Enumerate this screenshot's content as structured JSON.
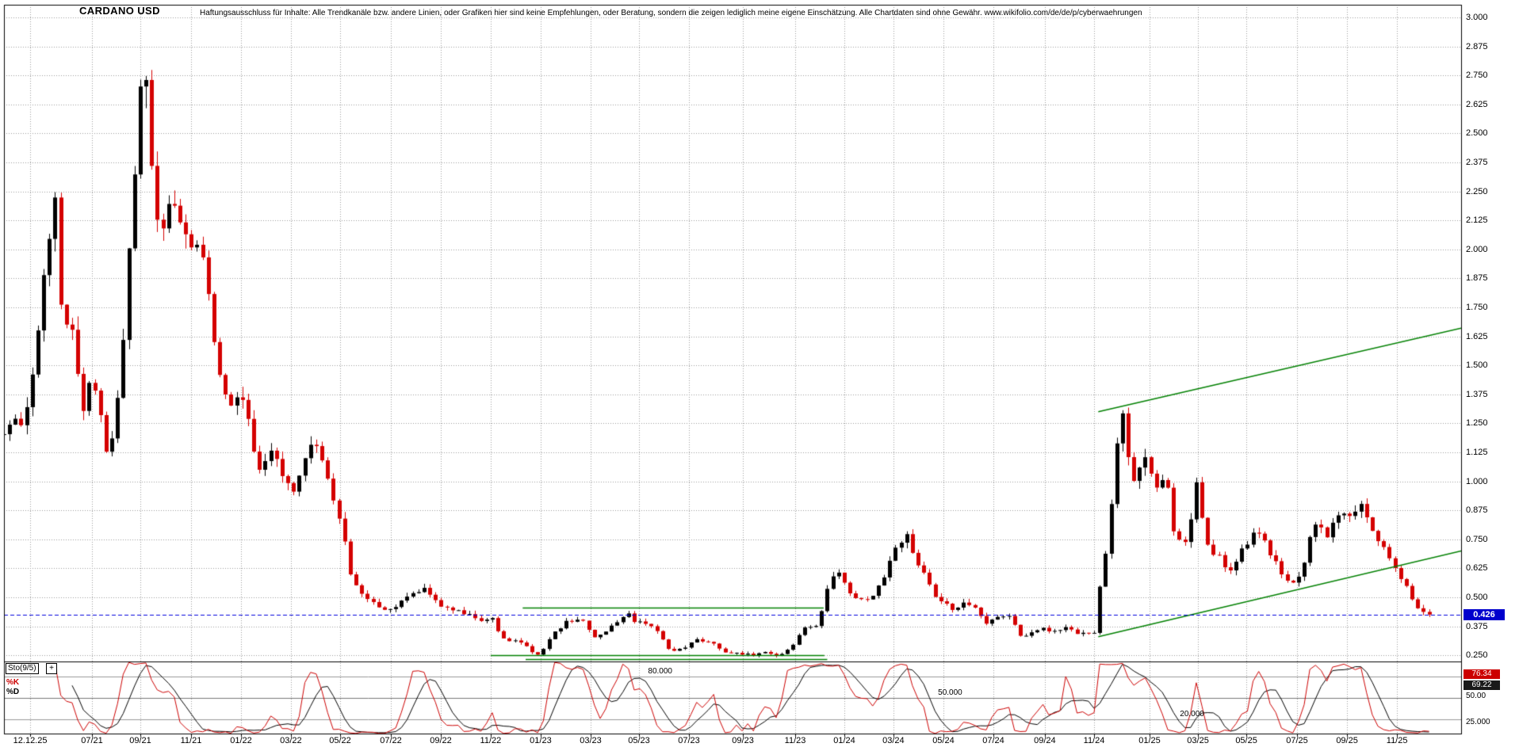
{
  "header": {
    "title": "CARDANO USD",
    "disclaimer": "Haftungsausschluss für Inhalte: Alle Trendkanäle bzw. andere Linien, oder Grafiken hier sind keine Empfehlungen, oder Beratung, sondern die zeigen lediglich meine eigene Einschätzung. Alle Chartdaten sind ohne Gewähr. www.wikifolio.com/de/de/p/cyberwaehrungen"
  },
  "colors": {
    "up_candle": "#000000",
    "down_candle": "#d40000",
    "trend_line": "#008000",
    "price_line": "#0000dd",
    "grid": "#999999",
    "k_line": "#cc0000",
    "d_line": "#000000",
    "badge_bg": "#0000cd"
  },
  "chart_data": {
    "type": "candlestick",
    "title": "CARDANO USD",
    "unit": "USD",
    "last_price": "0.426",
    "price_line": 0.426,
    "ylim": [
      0.22,
      3.05
    ],
    "y_ticks": [
      "3.000",
      "2.875",
      "2.750",
      "2.625",
      "2.500",
      "2.375",
      "2.250",
      "2.125",
      "2.000",
      "1.875",
      "1.750",
      "1.625",
      "1.500",
      "1.375",
      "1.250",
      "1.125",
      "1.000",
      "0.875",
      "0.750",
      "0.625",
      "0.500",
      "0.375",
      "0.250"
    ],
    "x_ticks": [
      {
        "label": "12.12.25",
        "u": 0.018
      },
      {
        "label": "07/21",
        "u": 0.0604
      },
      {
        "label": "09/21",
        "u": 0.0936
      },
      {
        "label": "11/21",
        "u": 0.1284
      },
      {
        "label": "01/22",
        "u": 0.1627
      },
      {
        "label": "03/22",
        "u": 0.1969
      },
      {
        "label": "05/22",
        "u": 0.2307
      },
      {
        "label": "07/22",
        "u": 0.2655
      },
      {
        "label": "09/22",
        "u": 0.2998
      },
      {
        "label": "11/22",
        "u": 0.334
      },
      {
        "label": "01/23",
        "u": 0.3683
      },
      {
        "label": "03/23",
        "u": 0.4026
      },
      {
        "label": "05/23",
        "u": 0.4358
      },
      {
        "label": "07/23",
        "u": 0.4701
      },
      {
        "label": "09/23",
        "u": 0.5071
      },
      {
        "label": "11/23",
        "u": 0.543
      },
      {
        "label": "01/24",
        "u": 0.5767
      },
      {
        "label": "03/24",
        "u": 0.6104
      },
      {
        "label": "05/24",
        "u": 0.6447
      },
      {
        "label": "07/24",
        "u": 0.679
      },
      {
        "label": "09/24",
        "u": 0.7143
      },
      {
        "label": "11/24",
        "u": 0.7481
      },
      {
        "label": "01/25",
        "u": 0.7862
      },
      {
        "label": "03/25",
        "u": 0.8194
      },
      {
        "label": "05/25",
        "u": 0.8526
      },
      {
        "label": "07/25",
        "u": 0.8874
      },
      {
        "label": "09/25",
        "u": 0.9217
      },
      {
        "label": "11/25",
        "u": 0.956
      }
    ],
    "anchors": [
      [
        0.0,
        1.2
      ],
      [
        0.008,
        1.3
      ],
      [
        0.014,
        1.25
      ],
      [
        0.019,
        1.42
      ],
      [
        0.027,
        1.85
      ],
      [
        0.035,
        2.28
      ],
      [
        0.04,
        1.58
      ],
      [
        0.046,
        1.72
      ],
      [
        0.054,
        1.3
      ],
      [
        0.061,
        1.45
      ],
      [
        0.071,
        1.1
      ],
      [
        0.08,
        1.4
      ],
      [
        0.088,
        2.2
      ],
      [
        0.095,
        2.92
      ],
      [
        0.101,
        2.4
      ],
      [
        0.107,
        2.08
      ],
      [
        0.114,
        2.22
      ],
      [
        0.121,
        2.08
      ],
      [
        0.128,
        1.98
      ],
      [
        0.134,
        2.08
      ],
      [
        0.145,
        1.6
      ],
      [
        0.153,
        1.32
      ],
      [
        0.163,
        1.38
      ],
      [
        0.17,
        1.18
      ],
      [
        0.175,
        1.06
      ],
      [
        0.185,
        1.15
      ],
      [
        0.191,
        1.02
      ],
      [
        0.197,
        0.96
      ],
      [
        0.205,
        1.05
      ],
      [
        0.212,
        1.18
      ],
      [
        0.224,
        0.96
      ],
      [
        0.232,
        0.8
      ],
      [
        0.238,
        0.6
      ],
      [
        0.245,
        0.52
      ],
      [
        0.254,
        0.47
      ],
      [
        0.265,
        0.44
      ],
      [
        0.276,
        0.5
      ],
      [
        0.288,
        0.55
      ],
      [
        0.3,
        0.46
      ],
      [
        0.31,
        0.45
      ],
      [
        0.318,
        0.42
      ],
      [
        0.325,
        0.41
      ],
      [
        0.336,
        0.4
      ],
      [
        0.341,
        0.33
      ],
      [
        0.351,
        0.31
      ],
      [
        0.36,
        0.28
      ],
      [
        0.367,
        0.25
      ],
      [
        0.376,
        0.34
      ],
      [
        0.385,
        0.39
      ],
      [
        0.396,
        0.4
      ],
      [
        0.403,
        0.35
      ],
      [
        0.407,
        0.32
      ],
      [
        0.414,
        0.36
      ],
      [
        0.42,
        0.39
      ],
      [
        0.427,
        0.43
      ],
      [
        0.435,
        0.39
      ],
      [
        0.445,
        0.37
      ],
      [
        0.451,
        0.33
      ],
      [
        0.457,
        0.27
      ],
      [
        0.468,
        0.29
      ],
      [
        0.476,
        0.32
      ],
      [
        0.486,
        0.3
      ],
      [
        0.492,
        0.27
      ],
      [
        0.499,
        0.26
      ],
      [
        0.512,
        0.25
      ],
      [
        0.523,
        0.26
      ],
      [
        0.533,
        0.25
      ],
      [
        0.541,
        0.29
      ],
      [
        0.548,
        0.36
      ],
      [
        0.559,
        0.39
      ],
      [
        0.567,
        0.58
      ],
      [
        0.574,
        0.62
      ],
      [
        0.58,
        0.52
      ],
      [
        0.586,
        0.48
      ],
      [
        0.598,
        0.52
      ],
      [
        0.605,
        0.6
      ],
      [
        0.61,
        0.68
      ],
      [
        0.618,
        0.78
      ],
      [
        0.628,
        0.64
      ],
      [
        0.638,
        0.52
      ],
      [
        0.645,
        0.47
      ],
      [
        0.652,
        0.45
      ],
      [
        0.658,
        0.49
      ],
      [
        0.664,
        0.46
      ],
      [
        0.675,
        0.39
      ],
      [
        0.683,
        0.41
      ],
      [
        0.69,
        0.42
      ],
      [
        0.698,
        0.33
      ],
      [
        0.705,
        0.35
      ],
      [
        0.71,
        0.37
      ],
      [
        0.719,
        0.34
      ],
      [
        0.726,
        0.37
      ],
      [
        0.73,
        0.36
      ],
      [
        0.74,
        0.34
      ],
      [
        0.748,
        0.35
      ],
      [
        0.753,
        0.58
      ],
      [
        0.759,
        0.82
      ],
      [
        0.764,
        1.2
      ],
      [
        0.768,
        1.28
      ],
      [
        0.772,
        1.05
      ],
      [
        0.775,
        0.98
      ],
      [
        0.781,
        1.1
      ],
      [
        0.786,
        1.05
      ],
      [
        0.791,
        0.95
      ],
      [
        0.796,
        1.03
      ],
      [
        0.8,
        0.92
      ],
      [
        0.803,
        0.78
      ],
      [
        0.808,
        0.72
      ],
      [
        0.813,
        0.76
      ],
      [
        0.819,
        1.02
      ],
      [
        0.824,
        0.73
      ],
      [
        0.83,
        0.7
      ],
      [
        0.834,
        0.68
      ],
      [
        0.839,
        0.6
      ],
      [
        0.844,
        0.64
      ],
      [
        0.849,
        0.7
      ],
      [
        0.853,
        0.74
      ],
      [
        0.858,
        0.79
      ],
      [
        0.864,
        0.74
      ],
      [
        0.87,
        0.67
      ],
      [
        0.875,
        0.62
      ],
      [
        0.881,
        0.56
      ],
      [
        0.886,
        0.58
      ],
      [
        0.891,
        0.62
      ],
      [
        0.897,
        0.8
      ],
      [
        0.902,
        0.84
      ],
      [
        0.906,
        0.78
      ],
      [
        0.909,
        0.76
      ],
      [
        0.915,
        0.88
      ],
      [
        0.919,
        0.85
      ],
      [
        0.924,
        0.83
      ],
      [
        0.931,
        0.9
      ],
      [
        0.935,
        0.86
      ],
      [
        0.938,
        0.82
      ],
      [
        0.943,
        0.74
      ],
      [
        0.948,
        0.7
      ],
      [
        0.952,
        0.65
      ],
      [
        0.958,
        0.58
      ],
      [
        0.962,
        0.55
      ],
      [
        0.966,
        0.49
      ],
      [
        0.97,
        0.45
      ],
      [
        0.974,
        0.43
      ],
      [
        0.978,
        0.426
      ]
    ],
    "overlays": {
      "trend_lines": [
        {
          "u1": 0.751,
          "p1": 1.3,
          "u2": 1.0,
          "p2": 1.66
        },
        {
          "u1": 0.751,
          "p1": 0.33,
          "u2": 1.0,
          "p2": 0.7
        }
      ],
      "horizontal_lines": [
        {
          "u1": 0.356,
          "u2": 0.5625,
          "p": 0.455
        },
        {
          "u1": 0.334,
          "u2": 0.563,
          "p": 0.25
        },
        {
          "u1": 0.358,
          "u2": 0.565,
          "p": 0.235
        }
      ]
    },
    "indicator": {
      "name": "Sto(9/5)",
      "k_label": "%K",
      "d_label": "%D",
      "k_value": "76.34",
      "d_value": "69.22",
      "scale_mid": "50.00",
      "scale_bottom": "25.000",
      "levels": [
        {
          "label": "80.000",
          "value": 80,
          "label_u": 0.442
        },
        {
          "label": "50.000",
          "value": 50,
          "label_u": 0.641
        },
        {
          "label": "20.000",
          "value": 20,
          "label_u": 0.807
        }
      ]
    }
  }
}
